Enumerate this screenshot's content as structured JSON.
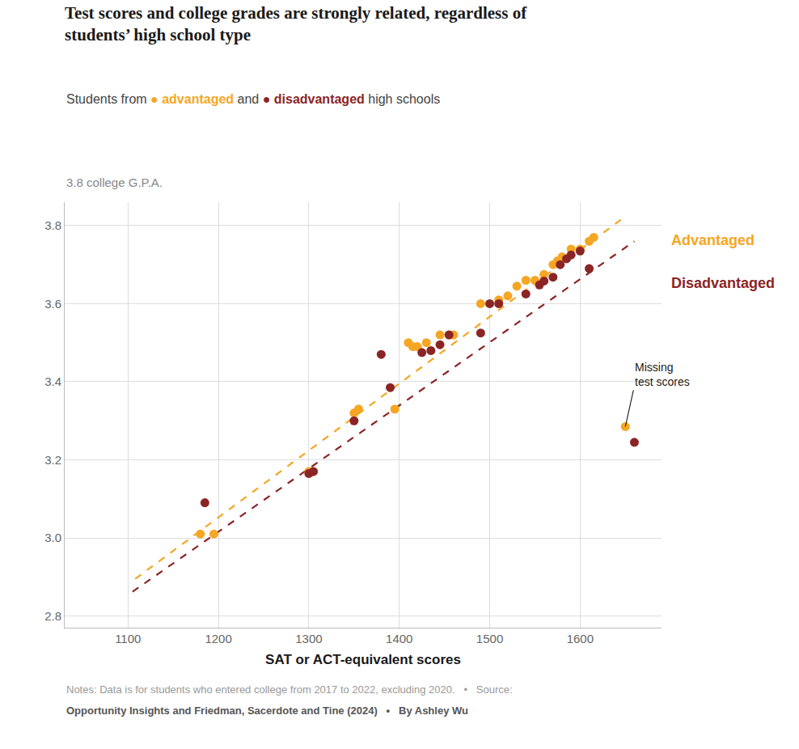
{
  "chart_data": {
    "type": "scatter",
    "title": "Test scores and college grades are strongly related, regardless of\nstudents’ high school type",
    "subtitle": [
      {
        "text": "Students from "
      },
      {
        "text": "● ",
        "color": "#F5A623"
      },
      {
        "text": "advantaged",
        "color": "#F5A623"
      },
      {
        "text": " and "
      },
      {
        "text": "● ",
        "color": "#8B2525"
      },
      {
        "text": "disadvantaged",
        "color": "#8B2525"
      },
      {
        "text": " high schools"
      }
    ],
    "xlabel": "SAT or ACT-equivalent scores",
    "ylabel": "3.8 college G.P.A.",
    "notes": [
      "Notes: Data is for students who entered college from 2017 to 2022, excluding 2020.   •   Source:",
      "Opportunity Insights and Friedman, Sacerdote and Tine (2024)   •   By Ashley Wu"
    ],
    "series": [
      {
        "name": "Advantaged",
        "color": "#F5A623",
        "marker": "circle",
        "line_style": "dash",
        "x": [
          1180,
          1195,
          1300,
          1305,
          1350,
          1355,
          1395,
          1410,
          1415,
          1420,
          1430,
          1445,
          1455,
          1460,
          1490,
          1510,
          1520,
          1530,
          1540,
          1550,
          1560,
          1570,
          1575,
          1580,
          1590,
          1600,
          1610,
          1615,
          1650
        ],
        "values": [
          3.01,
          3.01,
          3.17,
          3.17,
          3.32,
          3.33,
          3.33,
          3.5,
          3.49,
          3.49,
          3.5,
          3.52,
          3.52,
          3.52,
          3.6,
          3.61,
          3.62,
          3.645,
          3.66,
          3.66,
          3.675,
          3.7,
          3.71,
          3.72,
          3.74,
          3.74,
          3.76,
          3.77,
          3.285
        ],
        "trend_x": [
          1108,
          1645
        ],
        "trend_y": [
          2.895,
          3.815
        ]
      },
      {
        "name": "Disadvantaged",
        "color": "#8B2525",
        "marker": "circle",
        "line_style": "dash",
        "x": [
          1185,
          1300,
          1305,
          1350,
          1380,
          1390,
          1425,
          1435,
          1445,
          1455,
          1490,
          1500,
          1510,
          1540,
          1555,
          1560,
          1570,
          1578,
          1585,
          1590,
          1600,
          1610,
          1660
        ],
        "values": [
          3.09,
          3.165,
          3.17,
          3.3,
          3.47,
          3.385,
          3.475,
          3.48,
          3.495,
          3.52,
          3.525,
          3.6,
          3.6,
          3.625,
          3.648,
          3.658,
          3.668,
          3.7,
          3.715,
          3.725,
          3.735,
          3.69,
          3.245
        ],
        "trend_x": [
          1105,
          1660
        ],
        "trend_y": [
          2.862,
          3.76
        ]
      }
    ],
    "annotations": [
      {
        "text": "Missing\ntest scores",
        "x": 1650,
        "y": 3.285
      }
    ],
    "xlim": [
      1030,
      1690
    ],
    "ylim": [
      2.77,
      3.86
    ],
    "xticks": [
      1100,
      1200,
      1300,
      1400,
      1500,
      1600
    ],
    "yticks": [
      2.8,
      {
        "value": 3.0,
        "label": "3.0"
      },
      3.2,
      3.4,
      3.6,
      3.8
    ],
    "grid": true
  }
}
